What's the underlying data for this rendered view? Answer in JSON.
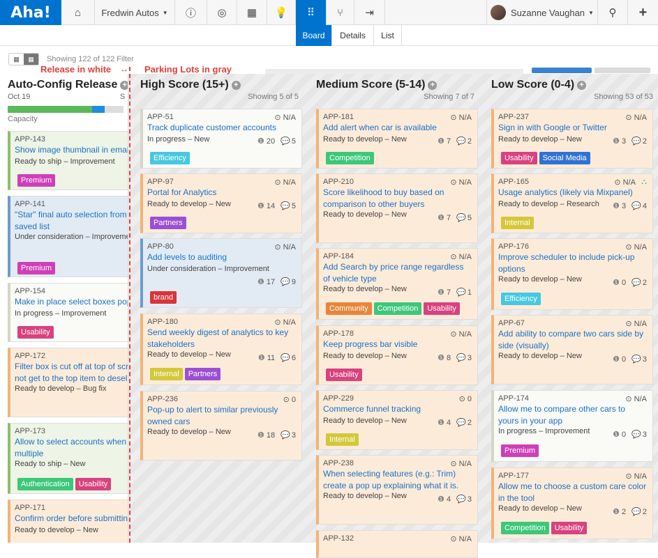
{
  "nav": {
    "logo": "Aha!",
    "workspace": "Fredwin Autos",
    "user": "Suzanne Vaughan"
  },
  "subnav": {
    "board": "Board",
    "details": "Details",
    "list": "List"
  },
  "toolbar": {
    "showing": "Showing 122 of 122 Filter"
  },
  "annotations": {
    "release_white": "Release in white",
    "parking_gray": "Parking Lots in gray"
  },
  "colors": {
    "brand_blue": "#0073cf",
    "annotation_red": "#e0413a",
    "tag_efficiency": "#46c8e0",
    "tag_competition": "#3cc779",
    "tag_partners": "#9b4fd4",
    "tag_brand": "#d9343a",
    "tag_internal": "#d4c83a",
    "tag_usability": "#d9417f",
    "tag_social_media": "#2f72d3",
    "tag_community": "#e8853c",
    "tag_premium": "#cf3fb8",
    "tag_authentication": "#3cc779"
  },
  "release_column": {
    "title": "Auto-Config Release",
    "date": "Oct 19",
    "cut_text": "S",
    "capacity_label": "Capacity",
    "capacity_done_fraction": 0.73,
    "capacity_in_progress_fraction": 0.11,
    "cards": [
      {
        "id": "APP-143",
        "title": "Show image thumbnail in email",
        "status": "Ready to ship – Improvement",
        "tags": [
          "Premium"
        ]
      },
      {
        "id": "APP-141",
        "title": "\"Star\" final auto selection from saved list",
        "status": "Under consideration – Improvement",
        "tags": [
          "Premium"
        ]
      },
      {
        "id": "APP-154",
        "title": "Make in place select boxes pop",
        "status": "In progress – Improvement",
        "tags": [
          "Usability"
        ]
      },
      {
        "id": "APP-172",
        "title": "Filter box is cut off at top of scr not get to the top item to desele",
        "status": "Ready to develop – Bug fix",
        "tags": []
      },
      {
        "id": "APP-173",
        "title": "Allow to select accounts when multiple",
        "status": "Ready to ship – New",
        "tags": [
          "Authentication",
          "Usability"
        ]
      },
      {
        "id": "APP-171",
        "title": "Confirm order before submitting",
        "status": "Ready to develop – New",
        "tags": []
      }
    ]
  },
  "columns": [
    {
      "title": "High Score (15+)",
      "showing": "Showing 5 of 5",
      "cards": [
        {
          "id": "APP-51",
          "score": "N/A",
          "title": "Track duplicate customer accounts",
          "status": "In progress – New",
          "points": "20",
          "comments": "5",
          "tags": [
            "Efficiency"
          ]
        },
        {
          "id": "APP-97",
          "score": "N/A",
          "title": "Portal for Analytics",
          "status": "Ready to develop – New",
          "points": "14",
          "comments": "5",
          "tags": [
            "Partners"
          ]
        },
        {
          "id": "APP-80",
          "score": "N/A",
          "title": "Add levels to auditing",
          "status": "Under consideration – Improvement",
          "points": "17",
          "comments": "9",
          "tags": [
            "brand"
          ]
        },
        {
          "id": "APP-180",
          "score": "N/A",
          "title": "Send weekly digest of analytics to key stakeholders",
          "status": "Ready to develop – New",
          "points": "11",
          "comments": "6",
          "tags": [
            "Internal",
            "Partners"
          ]
        },
        {
          "id": "APP-236",
          "score": "0",
          "title": "Pop-up to alert to similar previously owned cars",
          "status": "Ready to develop – New",
          "points": "18",
          "comments": "3",
          "tags": []
        }
      ]
    },
    {
      "title": "Medium Score (5-14)",
      "showing": "Showing 7 of 7",
      "cards": [
        {
          "id": "APP-181",
          "score": "N/A",
          "title": "Add alert when car is available",
          "status": "Ready to develop – New",
          "points": "7",
          "comments": "2",
          "tags": [
            "Competition"
          ]
        },
        {
          "id": "APP-210",
          "score": "N/A",
          "title": "Score likelihood to buy based on comparison to other buyers",
          "status": "Ready to develop – New",
          "points": "7",
          "comments": "5",
          "tags": []
        },
        {
          "id": "APP-184",
          "score": "N/A",
          "title": "Add Search by price range regardless of vehicle type",
          "status": "Ready to develop – New",
          "points": "7",
          "comments": "1",
          "tags": [
            "Community",
            "Competition",
            "Usability"
          ]
        },
        {
          "id": "APP-178",
          "score": "N/A",
          "title": "Keep progress bar visible",
          "status": "Ready to develop – New",
          "points": "8",
          "comments": "3",
          "tags": [
            "Usability"
          ]
        },
        {
          "id": "APP-229",
          "score": "0",
          "title": "Commerce funnel tracking",
          "status": "Ready to develop – New",
          "points": "4",
          "comments": "2",
          "tags": [
            "Internal"
          ]
        },
        {
          "id": "APP-238",
          "score": "N/A",
          "title": "When selecting features (e.g.: Trim) create a pop up explaining what it is.",
          "status": "Ready to develop – New",
          "points": "4",
          "comments": "3",
          "tags": []
        },
        {
          "id": "APP-132",
          "score": "N/A",
          "title": "",
          "status": "",
          "points": "",
          "comments": "",
          "tags": []
        }
      ]
    },
    {
      "title": "Low Score (0-4)",
      "showing": "Showing 53 of 53",
      "cards": [
        {
          "id": "APP-237",
          "score": "N/A",
          "title": "Sign in with Google or Twitter",
          "status": "Ready to develop – New",
          "points": "3",
          "comments": "2",
          "tags": [
            "Usability",
            "Social Media"
          ]
        },
        {
          "id": "APP-165",
          "score": "N/A",
          "title": "Usage analytics (likely via Mixpanel)",
          "status": "Ready to develop – Research",
          "points": "3",
          "comments": "4",
          "tags": [
            "Internal"
          ]
        },
        {
          "id": "APP-176",
          "score": "N/A",
          "title": "Improve scheduler to include pick-up options",
          "status": "Ready to develop – New",
          "points": "0",
          "comments": "2",
          "tags": [
            "Efficiency"
          ]
        },
        {
          "id": "APP-67",
          "score": "N/A",
          "title": "Add ability to compare two cars side by side (visually)",
          "status": "Ready to develop – New",
          "points": "0",
          "comments": "3",
          "tags": []
        },
        {
          "id": "APP-174",
          "score": "N/A",
          "title": "Allow me to compare other cars to yours in your app",
          "status": "In progress – Improvement",
          "points": "0",
          "comments": "3",
          "tags": [
            "Premium"
          ]
        },
        {
          "id": "APP-177",
          "score": "N/A",
          "title": "Allow me to choose a custom care color in the tool",
          "status": "Ready to develop – New",
          "points": "2",
          "comments": "2",
          "tags": [
            "Competition",
            "Usability"
          ]
        }
      ]
    }
  ]
}
